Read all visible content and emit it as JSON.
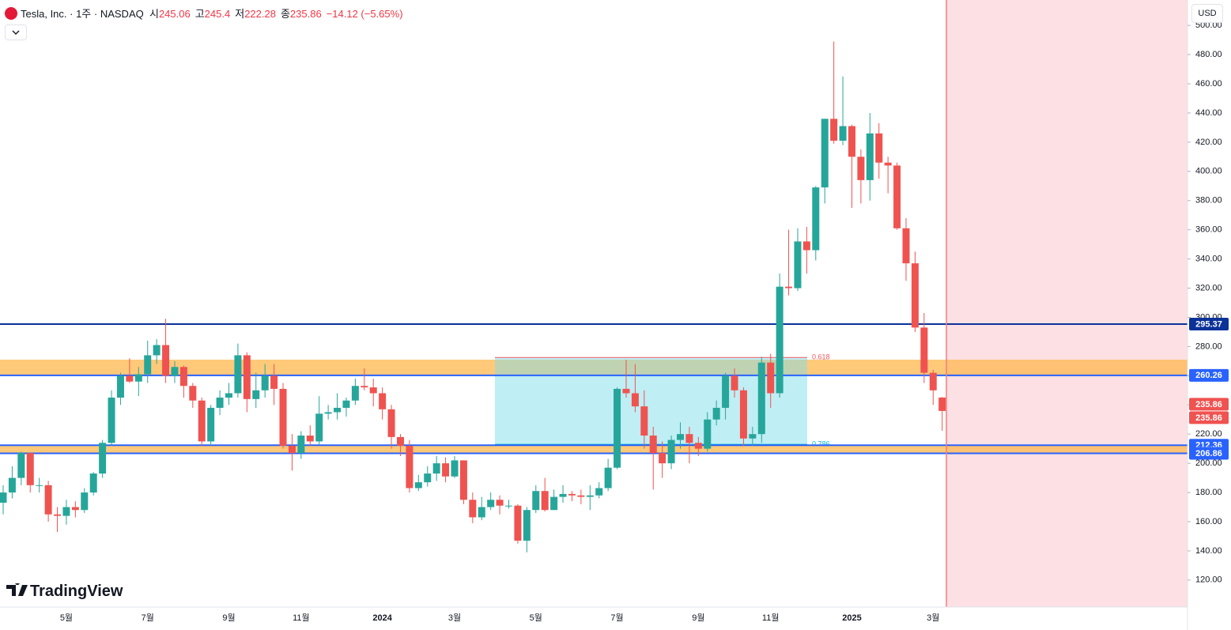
{
  "chart_data": {
    "type": "candlestick",
    "header": {
      "name": "Tesla, Inc. · 1주 · NASDAQ",
      "fields": [
        {
          "label": "시",
          "value": 245.06
        },
        {
          "label": "고",
          "value": 245.4
        },
        {
          "label": "저",
          "value": 222.28
        },
        {
          "label": "종",
          "value": 235.86
        }
      ],
      "change_text": "−14.12 (−5.65%)"
    },
    "currency": "USD",
    "brand": "TradingView",
    "categories": [
      null,
      null,
      null,
      null,
      null,
      null,
      null,
      "5월",
      null,
      null,
      null,
      null,
      null,
      null,
      null,
      null,
      "7월",
      null,
      null,
      null,
      null,
      null,
      null,
      null,
      null,
      "9월",
      null,
      null,
      null,
      null,
      null,
      null,
      null,
      "11월",
      null,
      null,
      null,
      null,
      null,
      null,
      null,
      null,
      "2024",
      null,
      null,
      null,
      null,
      null,
      null,
      null,
      "3월",
      null,
      null,
      null,
      null,
      null,
      null,
      null,
      null,
      "5월",
      null,
      null,
      null,
      null,
      null,
      null,
      null,
      null,
      "7월",
      null,
      null,
      null,
      null,
      null,
      null,
      null,
      null,
      "9월",
      null,
      null,
      null,
      null,
      null,
      null,
      null,
      "11월",
      null,
      null,
      null,
      null,
      null,
      null,
      null,
      null,
      "2025",
      null,
      null,
      null,
      null,
      null,
      null,
      null,
      null,
      "3월",
      null
    ],
    "open": [
      173,
      180,
      190,
      207,
      185,
      185,
      165,
      164,
      170,
      168,
      180,
      193,
      214,
      245,
      260,
      256,
      261,
      274,
      281,
      260,
      266,
      253,
      243,
      215,
      238,
      245,
      248,
      274,
      244,
      250,
      260,
      251,
      212,
      207,
      219,
      215,
      234,
      235,
      238,
      243,
      253,
      252,
      248,
      237,
      218,
      212,
      183,
      187,
      193,
      200,
      191,
      202,
      175,
      163,
      170,
      175,
      171,
      171,
      147,
      168,
      181,
      168,
      177,
      179,
      178,
      177,
      178,
      183,
      197,
      251,
      248,
      239,
      219,
      207,
      200,
      216,
      220,
      214,
      210,
      230,
      238,
      260,
      250,
      217,
      220,
      269,
      248,
      321,
      320,
      352,
      346,
      389,
      436,
      421,
      431,
      410,
      394,
      426,
      406,
      404,
      361,
      337,
      293,
      262,
      245.06
    ],
    "high": [
      185,
      198,
      208,
      207,
      190,
      188,
      170,
      175,
      174,
      183,
      194,
      216,
      250,
      262,
      272,
      266,
      284,
      285,
      299,
      270,
      267,
      255,
      245,
      240,
      250,
      255,
      282,
      276,
      262,
      268,
      268,
      255,
      220,
      222,
      226,
      246,
      240,
      248,
      245,
      258,
      265,
      258,
      252,
      240,
      220,
      216,
      192,
      198,
      205,
      204,
      205,
      202,
      180,
      177,
      180,
      178,
      175,
      172,
      170,
      185,
      190,
      182,
      185,
      181,
      182,
      185,
      187,
      203,
      252,
      271,
      268,
      250,
      225,
      215,
      219,
      228,
      225,
      218,
      235,
      243,
      262,
      265,
      252,
      225,
      273,
      275,
      330,
      360,
      361,
      362,
      390,
      436,
      489,
      465,
      432,
      415,
      440,
      433,
      410,
      406,
      368,
      345,
      303,
      264,
      245.4
    ],
    "low": [
      165,
      176,
      185,
      180,
      180,
      160,
      153,
      158,
      163,
      166,
      178,
      190,
      212,
      240,
      255,
      246,
      255,
      268,
      255,
      255,
      245,
      238,
      212,
      212,
      233,
      240,
      245,
      235,
      238,
      245,
      240,
      210,
      195,
      203,
      212,
      213,
      230,
      230,
      232,
      240,
      250,
      239,
      230,
      210,
      205,
      180,
      181,
      184,
      188,
      187,
      190,
      172,
      159,
      161,
      168,
      165,
      169,
      145,
      139,
      166,
      167,
      168,
      173,
      174,
      172,
      168,
      176,
      181,
      196,
      245,
      235,
      210,
      182,
      190,
      196,
      210,
      200,
      205,
      208,
      226,
      230,
      245,
      212,
      212,
      214,
      238,
      245,
      315,
      318,
      330,
      339,
      378,
      419,
      418,
      375,
      378,
      380,
      395,
      385,
      360,
      325,
      290,
      255,
      240,
      222.28
    ],
    "close": [
      180,
      190,
      207,
      185,
      185,
      165,
      164,
      170,
      168,
      180,
      193,
      214,
      245,
      260,
      256,
      261,
      274,
      281,
      260,
      266,
      253,
      243,
      215,
      238,
      245,
      248,
      274,
      244,
      250,
      260,
      251,
      212,
      207,
      219,
      215,
      234,
      235,
      238,
      243,
      253,
      252,
      248,
      237,
      218,
      212,
      183,
      187,
      193,
      200,
      191,
      202,
      175,
      163,
      170,
      175,
      171,
      171,
      147,
      168,
      181,
      168,
      177,
      179,
      178,
      177,
      178,
      183,
      197,
      251,
      248,
      239,
      219,
      207,
      200,
      216,
      220,
      214,
      210,
      230,
      238,
      260,
      250,
      217,
      220,
      269,
      248,
      321,
      320,
      352,
      346,
      389,
      436,
      421,
      431,
      410,
      394,
      426,
      406,
      404,
      361,
      337,
      293,
      262,
      249.98,
      235.86
    ],
    "up_color": "#26a69a",
    "down_color": "#ef5350",
    "ylim": [
      101.5,
      517.4
    ],
    "yticks": [
      {
        "value": 120,
        "label": "120.00"
      },
      {
        "value": 140,
        "label": "140.00"
      },
      {
        "value": 160,
        "label": "160.00"
      },
      {
        "value": 180,
        "label": "180.00"
      },
      {
        "value": 200,
        "label": "200.00"
      },
      {
        "value": 220,
        "label": "220.00"
      },
      {
        "value": 240,
        "label": "240.00"
      },
      {
        "value": 260,
        "label": "260.00"
      },
      {
        "value": 280,
        "label": "280.00"
      },
      {
        "value": 300,
        "label": "300.00"
      },
      {
        "value": 320,
        "label": "320.00"
      },
      {
        "value": 340,
        "label": "340.00"
      },
      {
        "value": 360,
        "label": "360.00"
      },
      {
        "value": 380,
        "label": "380.00"
      },
      {
        "value": 400,
        "label": "400.00"
      },
      {
        "value": 420,
        "label": "420.00"
      },
      {
        "value": 440,
        "label": "440.00"
      },
      {
        "value": 460,
        "label": "460.00"
      },
      {
        "value": 480,
        "label": "480.00"
      },
      {
        "value": 500,
        "label": "500.00"
      }
    ],
    "levels": [
      {
        "value": 295.37,
        "color": "#0c3299"
      },
      {
        "value": 260.26,
        "color": "#2962ff"
      },
      {
        "value": 212.36,
        "color": "#2962ff"
      },
      {
        "value": 206.86,
        "color": "#2962ff"
      }
    ],
    "zones": [
      {
        "range": [
          260.26,
          271
        ],
        "color": "#ffb74d"
      },
      {
        "range": [
          206.86,
          212.36
        ],
        "color": "#ffb74d"
      }
    ],
    "fib": [
      {
        "value": 272.5,
        "label": "0.618",
        "color": "#f7525f"
      },
      {
        "value": 213,
        "label": "0.786",
        "color": "#00bcd4"
      }
    ]
  }
}
